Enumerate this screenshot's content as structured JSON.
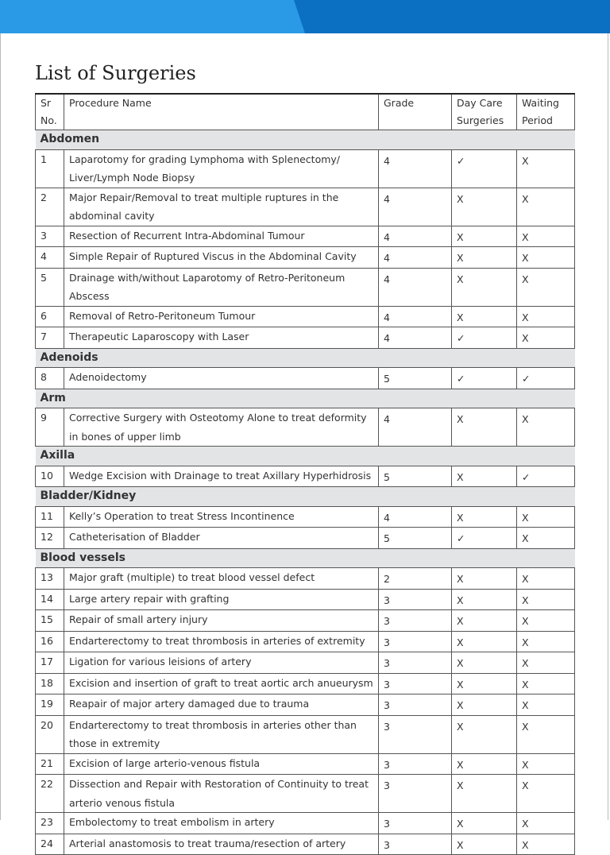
{
  "title": "List of Surgeries",
  "table": {
    "headers": [
      "Sr No.",
      "Procedure Name",
      "Grade",
      "Day Care Surgeries",
      "Waiting Period"
    ],
    "sections": [
      {
        "name": "Abdomen",
        "rows": [
          [
            "1",
            "Laparotomy for grading Lymphoma with Splenectomy/ Liver/Lymph Node Biopsy",
            "4",
            "✓",
            "X"
          ],
          [
            "2",
            "Major Repair/Removal to treat multiple ruptures in the abdominal cavity",
            "4",
            "X",
            "X"
          ],
          [
            "3",
            "Resection of Recurrent Intra-Abdominal Tumour",
            "4",
            "X",
            "X"
          ],
          [
            "4",
            "Simple Repair of Ruptured Viscus in the Abdominal Cavity",
            "4",
            "X",
            "X"
          ],
          [
            "5",
            "Drainage with/without Laparotomy of Retro-Peritoneum Abscess",
            "4",
            "X",
            "X"
          ],
          [
            "6",
            "Removal of Retro-Peritoneum Tumour",
            "4",
            "X",
            "X"
          ],
          [
            "7",
            "Therapeutic Laparoscopy with Laser",
            "4",
            "✓",
            "X"
          ]
        ]
      },
      {
        "name": "Adenoids",
        "rows": [
          [
            "8",
            "Adenoidectomy",
            "5",
            "✓",
            "✓"
          ]
        ]
      },
      {
        "name": "Arm",
        "rows": [
          [
            "9",
            "Corrective Surgery with Osteotomy Alone to treat deformity in bones of upper limb",
            "4",
            "X",
            "X"
          ]
        ]
      },
      {
        "name": "Axilla",
        "rows": [
          [
            "10",
            "Wedge Excision with Drainage to treat Axillary Hyperhidrosis",
            "5",
            "X",
            "✓"
          ]
        ]
      },
      {
        "name": "Bladder/Kidney",
        "rows": [
          [
            "11",
            "Kelly’s Operation to treat Stress Incontinence",
            "4",
            "X",
            "X"
          ],
          [
            "12",
            "Catheterisation of Bladder",
            "5",
            "✓",
            "X"
          ]
        ]
      },
      {
        "name": "Blood vessels",
        "rows": [
          [
            "13",
            "Major graft (multiple) to treat blood vessel defect",
            "2",
            "X",
            "X"
          ],
          [
            "14",
            "Large artery repair with grafting",
            "3",
            "X",
            "X"
          ],
          [
            "15",
            "Repair of small artery injury",
            "3",
            "X",
            "X"
          ],
          [
            "16",
            "Endarterectomy to treat thrombosis in arteries of extremity",
            "3",
            "X",
            "X"
          ],
          [
            "17",
            "Ligation for various leisions of artery",
            "3",
            "X",
            "X"
          ],
          [
            "18",
            "Excision and insertion of graft to treat aortic arch anueurysm",
            "3",
            "X",
            "X"
          ],
          [
            "19",
            "Reapair of major artery damaged due to trauma",
            "3",
            "X",
            "X"
          ],
          [
            "20",
            "Endarterectomy to treat thrombosis in arteries other than those in extremity",
            "3",
            "X",
            "X"
          ],
          [
            "21",
            "Excision of large arterio-venous fistula",
            "3",
            "X",
            "X"
          ],
          [
            "22",
            "Dissection and Repair with Restoration of Continuity to treat arterio venous fistula",
            "3",
            "X",
            "X"
          ],
          [
            "23",
            "Embolectomy to treat embolism in artery",
            "3",
            "X",
            "X"
          ],
          [
            "24",
            "Arterial anastomosis to treat trauma/resection of artery",
            "3",
            "X",
            "X"
          ]
        ]
      }
    ]
  }
}
